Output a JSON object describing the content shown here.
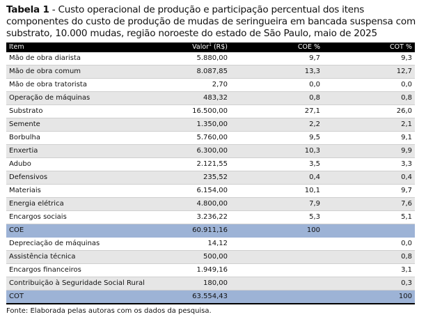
{
  "title": {
    "number": "Tabela 1",
    "separator": " - ",
    "text": "Custo operacional de produção e participação percentual dos itens componentes do custo de produção de mudas de seringueira em bancada suspensa com substrato, 10.000 mudas, região noroeste do estado de São Paulo, maio de 2025"
  },
  "table": {
    "headers": {
      "item": "Item",
      "valor": "Valor",
      "valor_sup": "1",
      "valor_unit": " (R$)",
      "coe": "COE %",
      "cot": "COT %"
    },
    "rows": [
      {
        "item": "Mão de obra diarista",
        "valor": "5.880,00",
        "coe": "9,7",
        "cot": "9,3"
      },
      {
        "item": "Mão de obra comum",
        "valor": "8.087,85",
        "coe": "13,3",
        "cot": "12,7"
      },
      {
        "item": "Mão de obra tratorista",
        "valor": "2,70",
        "coe": "0,0",
        "cot": "0,0"
      },
      {
        "item": "Operação de máquinas",
        "valor": "483,32",
        "coe": "0,8",
        "cot": "0,8"
      },
      {
        "item": "Substrato",
        "valor": "16.500,00",
        "coe": "27,1",
        "cot": "26,0"
      },
      {
        "item": "Semente",
        "valor": "1.350,00",
        "coe": "2,2",
        "cot": "2,1"
      },
      {
        "item": "Borbulha",
        "valor": "5.760,00",
        "coe": "9,5",
        "cot": "9,1"
      },
      {
        "item": "Enxertia",
        "valor": "6.300,00",
        "coe": "10,3",
        "cot": "9,9"
      },
      {
        "item": "Adubo",
        "valor": "2.121,55",
        "coe": "3,5",
        "cot": "3,3"
      },
      {
        "item": "Defensivos",
        "valor": "235,52",
        "coe": "0,4",
        "cot": "0,4"
      },
      {
        "item": "Materiais",
        "valor": "6.154,00",
        "coe": "10,1",
        "cot": "9,7"
      },
      {
        "item": "Energia elétrica",
        "valor": "4.800,00",
        "coe": "7,9",
        "cot": "7,6"
      },
      {
        "item": "Encargos sociais",
        "valor": "3.236,22",
        "coe": "5,3",
        "cot": "5,1"
      },
      {
        "item": "COE",
        "valor": "60.911,16",
        "coe": "100",
        "cot": ""
      },
      {
        "item": "Depreciação de máquinas",
        "valor": "14,12",
        "coe": "",
        "cot": "0,0"
      },
      {
        "item": "Assistência técnica",
        "valor": "500,00",
        "coe": "",
        "cot": "0,8"
      },
      {
        "item": "Encargos financeiros",
        "valor": "1.949,16",
        "coe": "",
        "cot": "3,1"
      },
      {
        "item": "Contribuição à Seguridade Social Rural",
        "valor": "180,00",
        "coe": "",
        "cot": "0,3"
      },
      {
        "item": "COT",
        "valor": "63.554,43",
        "coe": "",
        "cot": "100"
      }
    ]
  },
  "colors": {
    "header_bg": "#000000",
    "band_bg": "#e6e6e6",
    "total_bg": "#9db3d6"
  },
  "source": "Fonte: Elaborada pelas autoras com os dados da pesquisa."
}
